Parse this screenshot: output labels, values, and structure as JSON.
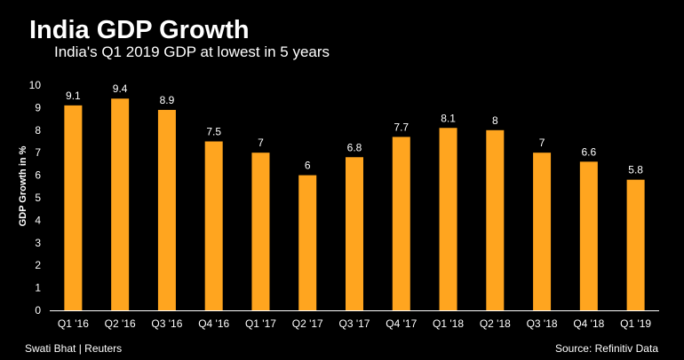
{
  "chart_data": {
    "type": "bar",
    "title": "India GDP Growth",
    "subtitle": "India's Q1 2019 GDP at lowest in 5 years",
    "xlabel": "",
    "ylabel": "GDP Growth in %",
    "categories": [
      "Q1 '16",
      "Q2 '16",
      "Q3 '16",
      "Q4 '16",
      "Q1 '17",
      "Q2 '17",
      "Q3 '17",
      "Q4 '17",
      "Q1 '18",
      "Q2 '18",
      "Q3 '18",
      "Q4 '18",
      "Q1 '19"
    ],
    "values": [
      9.1,
      9.4,
      8.9,
      7.5,
      7,
      6,
      6.8,
      7.7,
      8.1,
      8,
      7,
      6.6,
      5.8
    ],
    "value_labels": [
      "9.1",
      "9.4",
      "8.9",
      "7.5",
      "7",
      "6",
      "6.8",
      "7.7",
      "8.1",
      "8",
      "7",
      "6.6",
      "5.8"
    ],
    "yticks": [
      0,
      1,
      2,
      3,
      4,
      5,
      6,
      7,
      8,
      9,
      10
    ],
    "ylim": [
      0,
      10
    ],
    "grid": false,
    "bar_color": "#FFA51F"
  },
  "footer": {
    "credit": "Swati Bhat | Reuters",
    "source": "Source:  Refinitiv  Data"
  }
}
